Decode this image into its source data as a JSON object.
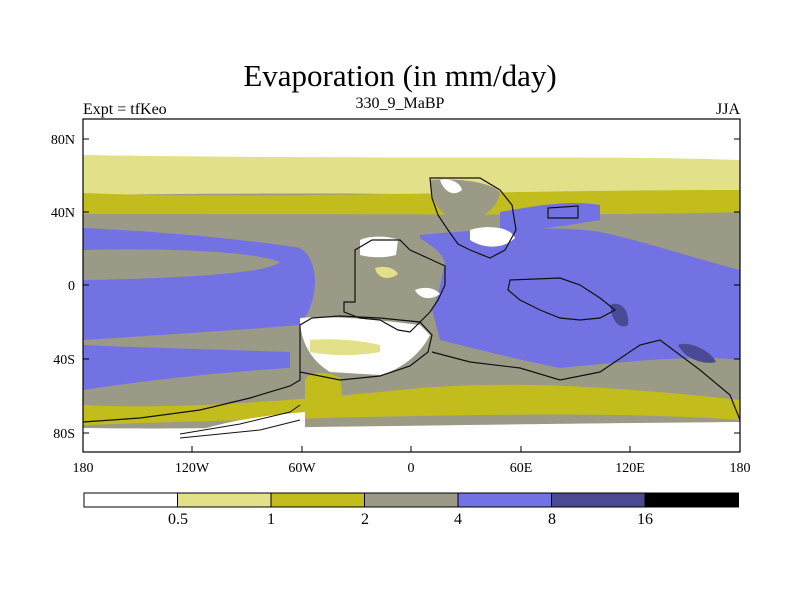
{
  "header": {
    "title": "Evaporation (in mm/day)",
    "left_label": "Expt = tfKeo",
    "center_label": "330_9_MaBP",
    "right_label": "JJA"
  },
  "axes": {
    "x_ticks": [
      "180",
      "120W",
      "60W",
      "0",
      "60E",
      "120E",
      "180"
    ],
    "y_ticks": [
      "80N",
      "40N",
      "0",
      "40S",
      "80S"
    ]
  },
  "colorbar": {
    "labels": [
      "0.5",
      "1",
      "2",
      "4",
      "8",
      "16"
    ],
    "colors": [
      "#ffffff",
      "#e3e08a",
      "#c2bd1c",
      "#9b9a86",
      "#7272e2",
      "#4a4a94",
      "#000000"
    ]
  },
  "chart_data": {
    "type": "map",
    "title": "Evaporation (in mm/day)",
    "lon_range": [
      -180,
      180
    ],
    "lat_range": [
      -90,
      90
    ],
    "contour_levels": [
      0.5,
      1,
      2,
      4,
      8,
      16
    ]
  }
}
